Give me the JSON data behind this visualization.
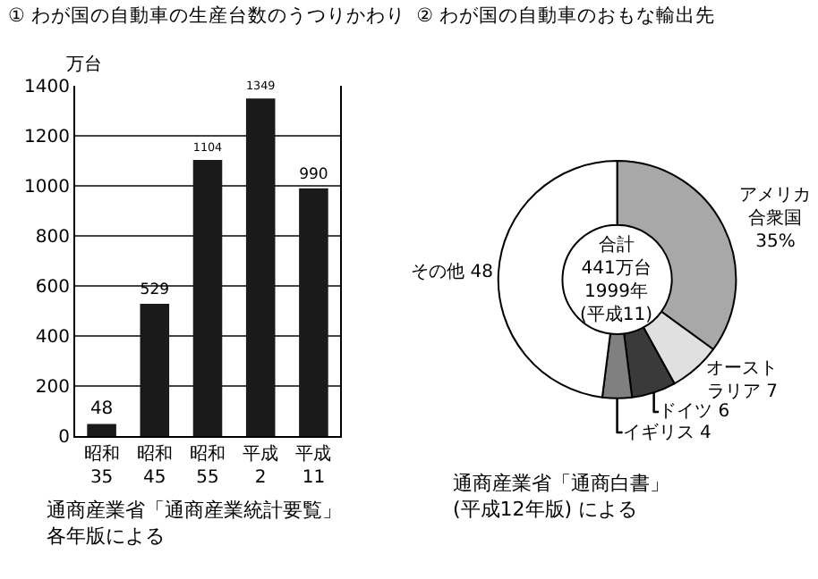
{
  "chart_data": [
    {
      "type": "bar",
      "title": "① わが国の自動車の生産台数のうつりかわり",
      "ylabel": "万台",
      "categories": [
        "昭和\n35",
        "昭和\n45",
        "昭和\n55",
        "平成\n2",
        "平成\n11"
      ],
      "values": [
        48,
        529,
        1104,
        1349,
        990
      ],
      "color": "#1a1a1a",
      "ylim": [
        0,
        1400
      ],
      "yticks": [
        0,
        200,
        400,
        600,
        800,
        1000,
        1200,
        1400
      ],
      "grid": "y",
      "data_labels": true,
      "annotations": [
        "通商産業省「通商産業統計要覧」各年版による"
      ]
    },
    {
      "type": "donut",
      "title": "② わが国の自動車のおもな輸出先",
      "categories": [
        "アメリカ合衆国",
        "オーストラリア",
        "ドイツ",
        "イギリス",
        "その他"
      ],
      "values": [
        35,
        7,
        6,
        4,
        48
      ],
      "value_labels": [
        "35%",
        "7",
        "6",
        "4",
        "48"
      ],
      "colors": [
        "#a8a8a8",
        "#e0e0e0",
        "#3a3a3a",
        "#808080",
        "#ffffff"
      ],
      "annotations": [
        "合計\n441万台\n1999年\n(平成11)",
        "通商産業省「通商白書」\n(平成12年版) による"
      ]
    }
  ]
}
